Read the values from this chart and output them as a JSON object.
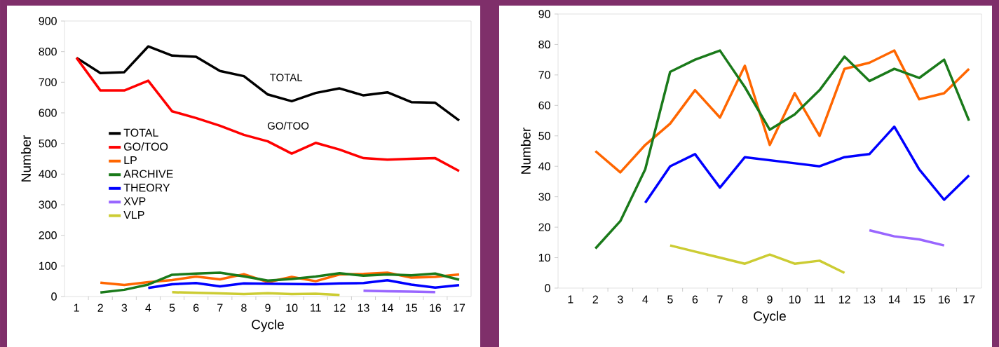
{
  "chart_data": [
    {
      "type": "line",
      "xlabel": "Cycle",
      "ylabel": "Number",
      "categories": [
        "1",
        "2",
        "3",
        "4",
        "5",
        "6",
        "7",
        "8",
        "9",
        "10",
        "11",
        "12",
        "13",
        "14",
        "15",
        "16",
        "17"
      ],
      "ylim": [
        0,
        900
      ],
      "yticks": [
        0,
        100,
        200,
        300,
        400,
        500,
        600,
        700,
        800,
        900
      ],
      "grid": false,
      "legend": "left",
      "marker": "none",
      "line_style": "solid",
      "annotations": [
        "TOTAL",
        "GO/TOO"
      ],
      "series": [
        {
          "name": "TOTAL",
          "color": "#000000",
          "values": [
            780,
            730,
            733,
            817,
            787,
            783,
            737,
            720,
            660,
            638,
            665,
            680,
            657,
            667,
            635,
            633,
            575
          ]
        },
        {
          "name": "GO/TOO",
          "color": "#ff0000",
          "values": [
            780,
            673,
            673,
            705,
            605,
            583,
            558,
            528,
            507,
            467,
            502,
            480,
            452,
            447,
            450,
            452,
            410
          ]
        },
        {
          "name": "LP",
          "color": "#ff6600",
          "values": [
            null,
            45,
            38,
            47,
            54,
            65,
            56,
            73,
            47,
            64,
            50,
            72,
            74,
            78,
            62,
            64,
            72
          ]
        },
        {
          "name": "ARCHIVE",
          "color": "#1a7a1a",
          "values": [
            null,
            13,
            22,
            39,
            71,
            75,
            78,
            66,
            52,
            57,
            65,
            76,
            68,
            72,
            69,
            75,
            55
          ]
        },
        {
          "name": "THEORY",
          "color": "#0000ff",
          "values": [
            null,
            null,
            null,
            28,
            40,
            44,
            33,
            43,
            42,
            41,
            40,
            43,
            44,
            53,
            39,
            29,
            37
          ]
        },
        {
          "name": "XVP",
          "color": "#9966ff",
          "values": [
            null,
            null,
            null,
            null,
            null,
            null,
            null,
            null,
            null,
            null,
            null,
            null,
            19,
            17,
            16,
            14,
            null
          ]
        },
        {
          "name": "VLP",
          "color": "#cccc33",
          "values": [
            null,
            null,
            null,
            null,
            14,
            12,
            10,
            8,
            11,
            8,
            9,
            5,
            null,
            null,
            null,
            null,
            null
          ]
        }
      ]
    },
    {
      "type": "line",
      "xlabel": "Cycle",
      "ylabel": "Number",
      "categories": [
        "1",
        "2",
        "3",
        "4",
        "5",
        "6",
        "7",
        "8",
        "9",
        "10",
        "11",
        "12",
        "13",
        "14",
        "15",
        "16",
        "17"
      ],
      "ylim": [
        0,
        90
      ],
      "yticks": [
        0,
        10,
        20,
        30,
        40,
        50,
        60,
        70,
        80,
        90
      ],
      "grid": false,
      "marker": "none",
      "line_style": "solid",
      "series": [
        {
          "color": "#ff6600",
          "values": [
            null,
            45,
            38,
            47,
            54,
            65,
            56,
            73,
            47,
            64,
            50,
            72,
            74,
            78,
            62,
            64,
            72
          ]
        },
        {
          "color": "#1a7a1a",
          "values": [
            null,
            13,
            22,
            39,
            71,
            75,
            78,
            66,
            52,
            57,
            65,
            76,
            68,
            72,
            69,
            75,
            55
          ]
        },
        {
          "color": "#0000ff",
          "values": [
            null,
            null,
            null,
            28,
            40,
            44,
            33,
            43,
            42,
            41,
            40,
            43,
            44,
            53,
            39,
            29,
            37
          ]
        },
        {
          "color": "#9966ff",
          "values": [
            null,
            null,
            null,
            null,
            null,
            null,
            null,
            null,
            null,
            null,
            null,
            null,
            19,
            17,
            16,
            14,
            null
          ]
        },
        {
          "color": "#cccc33",
          "values": [
            null,
            null,
            null,
            null,
            14,
            12,
            10,
            8,
            11,
            8,
            9,
            5,
            null,
            null,
            null,
            null,
            null
          ]
        }
      ]
    }
  ]
}
